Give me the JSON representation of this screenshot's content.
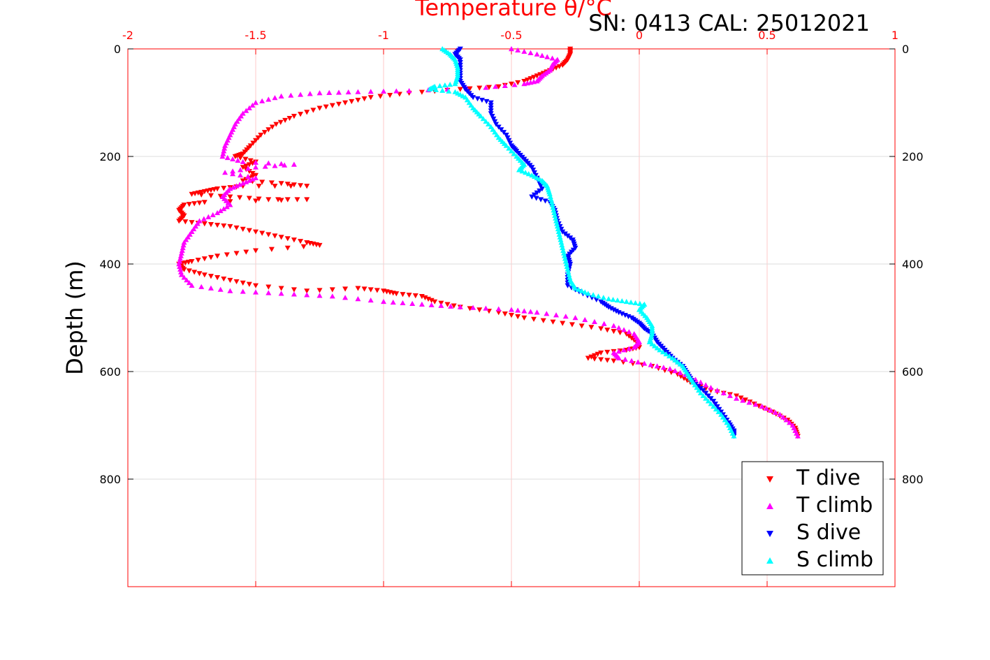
{
  "chart_data": {
    "type": "scatter",
    "title": "SN: 0413  CAL: 25012021",
    "xlabel": "Temperature θ/°C",
    "ylabel": "Depth (m)",
    "xlim": [
      -2,
      1
    ],
    "ylim": [
      0,
      1000
    ],
    "y_reversed": true,
    "x_axis_position": "top",
    "grid": true,
    "legend_position": "bottom-right",
    "x_ticks": [
      "-2",
      "-1.5",
      "-1",
      "-0.5",
      "0",
      "0.5",
      "1"
    ],
    "y_ticks": [
      "0",
      "200",
      "400",
      "600",
      "800"
    ],
    "colors": {
      "axis": "#ff0000",
      "grid": "#ffc8c8",
      "ygrid": "#dcdcdc"
    },
    "series": [
      {
        "name": "T dive",
        "marker": "triangle-down",
        "color": "#ff0000",
        "points": [
          [
            -0.27,
            0
          ],
          [
            -0.27,
            10
          ],
          [
            -0.28,
            20
          ],
          [
            -0.3,
            30
          ],
          [
            -0.35,
            40
          ],
          [
            -0.4,
            50
          ],
          [
            -0.45,
            60
          ],
          [
            -0.55,
            70
          ],
          [
            -0.7,
            75
          ],
          [
            -0.9,
            82
          ],
          [
            -1.05,
            90
          ],
          [
            -1.15,
            100
          ],
          [
            -1.25,
            110
          ],
          [
            -1.35,
            125
          ],
          [
            -1.42,
            140
          ],
          [
            -1.48,
            160
          ],
          [
            -1.52,
            180
          ],
          [
            -1.55,
            195
          ],
          [
            -1.58,
            200
          ],
          [
            -1.5,
            210
          ],
          [
            -1.55,
            220
          ],
          [
            -1.5,
            235
          ],
          [
            -1.55,
            245
          ],
          [
            -1.4,
            250
          ],
          [
            -1.3,
            255
          ],
          [
            -1.55,
            255
          ],
          [
            -1.65,
            260
          ],
          [
            -1.7,
            265
          ],
          [
            -1.75,
            270
          ],
          [
            -1.6,
            275
          ],
          [
            -1.45,
            280
          ],
          [
            -1.3,
            280
          ],
          [
            -1.7,
            285
          ],
          [
            -1.78,
            290
          ],
          [
            -1.8,
            300
          ],
          [
            -1.78,
            310
          ],
          [
            -1.8,
            320
          ],
          [
            -1.7,
            325
          ],
          [
            -1.6,
            330
          ],
          [
            -1.5,
            340
          ],
          [
            -1.4,
            350
          ],
          [
            -1.3,
            360
          ],
          [
            -1.25,
            365
          ],
          [
            -1.5,
            375
          ],
          [
            -1.65,
            385
          ],
          [
            -1.75,
            395
          ],
          [
            -1.8,
            400
          ],
          [
            -1.78,
            410
          ],
          [
            -1.7,
            420
          ],
          [
            -1.6,
            430
          ],
          [
            -1.5,
            440
          ],
          [
            -1.3,
            450
          ],
          [
            -1.1,
            445
          ],
          [
            -1.0,
            450
          ],
          [
            -0.95,
            455
          ],
          [
            -0.85,
            460
          ],
          [
            -0.8,
            470
          ],
          [
            -0.7,
            480
          ],
          [
            -0.55,
            490
          ],
          [
            -0.45,
            500
          ],
          [
            -0.3,
            510
          ],
          [
            -0.15,
            520
          ],
          [
            -0.05,
            530
          ],
          [
            -0.01,
            545
          ],
          [
            0.0,
            555
          ],
          [
            -0.05,
            560
          ],
          [
            -0.15,
            565
          ],
          [
            -0.2,
            575
          ],
          [
            -0.1,
            580
          ],
          [
            0.05,
            590
          ],
          [
            0.15,
            605
          ],
          [
            0.2,
            620
          ],
          [
            0.28,
            635
          ],
          [
            0.38,
            645
          ],
          [
            0.45,
            660
          ],
          [
            0.52,
            675
          ],
          [
            0.58,
            690
          ],
          [
            0.61,
            705
          ],
          [
            0.62,
            720
          ]
        ]
      },
      {
        "name": "T climb",
        "marker": "triangle-up",
        "color": "#ff00ff",
        "points": [
          [
            -0.5,
            0
          ],
          [
            -0.4,
            10
          ],
          [
            -0.32,
            20
          ],
          [
            -0.34,
            30
          ],
          [
            -0.35,
            40
          ],
          [
            -0.38,
            50
          ],
          [
            -0.4,
            60
          ],
          [
            -0.45,
            65
          ],
          [
            -0.6,
            72
          ],
          [
            -0.9,
            78
          ],
          [
            -1.1,
            80
          ],
          [
            -1.25,
            82
          ],
          [
            -1.4,
            88
          ],
          [
            -1.5,
            100
          ],
          [
            -1.55,
            120
          ],
          [
            -1.58,
            140
          ],
          [
            -1.6,
            160
          ],
          [
            -1.62,
            180
          ],
          [
            -1.63,
            200
          ],
          [
            -1.55,
            210
          ],
          [
            -1.35,
            215
          ],
          [
            -1.5,
            220
          ],
          [
            -1.62,
            230
          ],
          [
            -1.5,
            240
          ],
          [
            -1.55,
            250
          ],
          [
            -1.6,
            260
          ],
          [
            -1.63,
            275
          ],
          [
            -1.6,
            290
          ],
          [
            -1.65,
            305
          ],
          [
            -1.72,
            320
          ],
          [
            -1.75,
            340
          ],
          [
            -1.78,
            360
          ],
          [
            -1.79,
            380
          ],
          [
            -1.8,
            400
          ],
          [
            -1.79,
            420
          ],
          [
            -1.75,
            440
          ],
          [
            -1.6,
            450
          ],
          [
            -1.4,
            455
          ],
          [
            -1.2,
            460
          ],
          [
            -1.0,
            470
          ],
          [
            -0.85,
            475
          ],
          [
            -0.7,
            480
          ],
          [
            -0.5,
            485
          ],
          [
            -0.4,
            490
          ],
          [
            -0.25,
            500
          ],
          [
            -0.1,
            515
          ],
          [
            -0.02,
            530
          ],
          [
            0.0,
            545
          ],
          [
            -0.02,
            555
          ],
          [
            -0.1,
            565
          ],
          [
            -0.08,
            575
          ],
          [
            0.02,
            585
          ],
          [
            0.12,
            595
          ],
          [
            0.2,
            610
          ],
          [
            0.28,
            630
          ],
          [
            0.38,
            650
          ],
          [
            0.48,
            665
          ],
          [
            0.55,
            680
          ],
          [
            0.6,
            700
          ],
          [
            0.62,
            720
          ]
        ]
      },
      {
        "name": "S dive",
        "marker": "triangle-down",
        "color": "#0000ff",
        "points": [
          [
            -0.7,
            0
          ],
          [
            -0.72,
            10
          ],
          [
            -0.7,
            20
          ],
          [
            -0.7,
            40
          ],
          [
            -0.7,
            60
          ],
          [
            -0.68,
            75
          ],
          [
            -0.65,
            90
          ],
          [
            -0.58,
            100
          ],
          [
            -0.58,
            120
          ],
          [
            -0.56,
            140
          ],
          [
            -0.52,
            160
          ],
          [
            -0.5,
            180
          ],
          [
            -0.48,
            190
          ],
          [
            -0.45,
            205
          ],
          [
            -0.42,
            220
          ],
          [
            -0.4,
            240
          ],
          [
            -0.38,
            260
          ],
          [
            -0.42,
            275
          ],
          [
            -0.35,
            285
          ],
          [
            -0.33,
            300
          ],
          [
            -0.32,
            320
          ],
          [
            -0.3,
            340
          ],
          [
            -0.26,
            355
          ],
          [
            -0.25,
            370
          ],
          [
            -0.28,
            385
          ],
          [
            -0.27,
            400
          ],
          [
            -0.28,
            420
          ],
          [
            -0.28,
            440
          ],
          [
            -0.22,
            455
          ],
          [
            -0.15,
            470
          ],
          [
            -0.12,
            480
          ],
          [
            -0.08,
            490
          ],
          [
            -0.03,
            500
          ],
          [
            0.0,
            510
          ],
          [
            0.02,
            520
          ],
          [
            0.05,
            530
          ],
          [
            0.07,
            545
          ],
          [
            0.1,
            560
          ],
          [
            0.13,
            575
          ],
          [
            0.17,
            590
          ],
          [
            0.19,
            605
          ],
          [
            0.21,
            620
          ],
          [
            0.25,
            635
          ],
          [
            0.29,
            655
          ],
          [
            0.32,
            675
          ],
          [
            0.35,
            695
          ],
          [
            0.37,
            710
          ],
          [
            0.37,
            720
          ]
        ]
      },
      {
        "name": "S climb",
        "marker": "triangle-up",
        "color": "#00ffff",
        "points": [
          [
            -0.77,
            0
          ],
          [
            -0.74,
            10
          ],
          [
            -0.72,
            20
          ],
          [
            -0.71,
            35
          ],
          [
            -0.71,
            50
          ],
          [
            -0.72,
            65
          ],
          [
            -0.8,
            70
          ],
          [
            -0.82,
            75
          ],
          [
            -0.72,
            80
          ],
          [
            -0.68,
            90
          ],
          [
            -0.65,
            110
          ],
          [
            -0.62,
            125
          ],
          [
            -0.58,
            145
          ],
          [
            -0.55,
            165
          ],
          [
            -0.52,
            180
          ],
          [
            -0.48,
            200
          ],
          [
            -0.45,
            215
          ],
          [
            -0.47,
            225
          ],
          [
            -0.42,
            235
          ],
          [
            -0.38,
            245
          ],
          [
            -0.36,
            255
          ],
          [
            -0.35,
            270
          ],
          [
            -0.34,
            290
          ],
          [
            -0.33,
            310
          ],
          [
            -0.32,
            330
          ],
          [
            -0.31,
            350
          ],
          [
            -0.3,
            370
          ],
          [
            -0.29,
            390
          ],
          [
            -0.28,
            410
          ],
          [
            -0.27,
            430
          ],
          [
            -0.25,
            445
          ],
          [
            -0.2,
            455
          ],
          [
            -0.12,
            465
          ],
          [
            -0.05,
            470
          ],
          [
            0.02,
            475
          ],
          [
            0.0,
            485
          ],
          [
            0.03,
            500
          ],
          [
            0.05,
            515
          ],
          [
            0.05,
            530
          ],
          [
            0.04,
            545
          ],
          [
            0.08,
            560
          ],
          [
            0.13,
            575
          ],
          [
            0.17,
            590
          ],
          [
            0.19,
            605
          ],
          [
            0.21,
            620
          ],
          [
            0.24,
            640
          ],
          [
            0.28,
            660
          ],
          [
            0.32,
            680
          ],
          [
            0.35,
            700
          ],
          [
            0.37,
            720
          ]
        ]
      }
    ]
  }
}
